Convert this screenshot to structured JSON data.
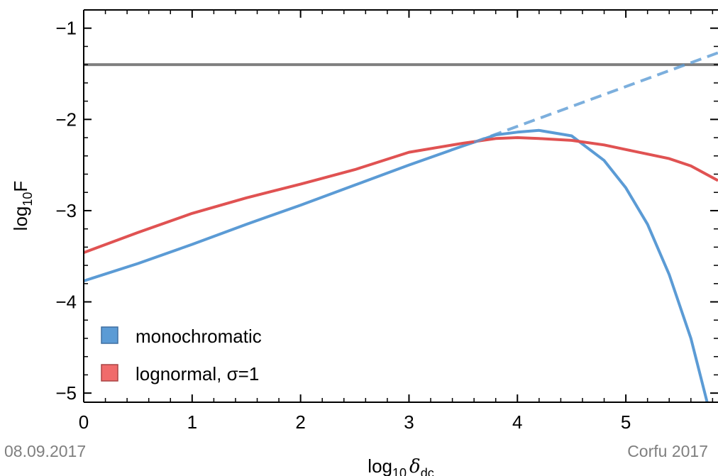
{
  "footer": {
    "date": "08.09.2017",
    "event": "Corfu 2017"
  },
  "chart_data": {
    "type": "line",
    "title": "",
    "xlabel": {
      "base": "log",
      "sub": "10",
      "symbol": "δ",
      "symbol_sub": "dc"
    },
    "ylabel": {
      "base": "log",
      "sub": "10",
      "symbol": "F"
    },
    "xlim": [
      0,
      5.85
    ],
    "ylim": [
      -5.1,
      -0.8
    ],
    "xticks": [
      0,
      1,
      2,
      3,
      4,
      5
    ],
    "yticks": [
      -1,
      -2,
      -3,
      -4,
      -5
    ],
    "xtick_labels": [
      "0",
      "1",
      "2",
      "3",
      "4",
      "5"
    ],
    "ytick_labels": [
      "−1",
      "−2",
      "−3",
      "−4",
      "−5"
    ],
    "grid": false,
    "legend_position": "bottom-left",
    "horizontal_line": {
      "y": -1.4,
      "color": "#7f7f7f"
    },
    "series": [
      {
        "name": "monochromatic",
        "color": "#5b9bd5",
        "style": "solid",
        "x": [
          0,
          0.5,
          1.0,
          1.5,
          2.0,
          2.5,
          3.0,
          3.5,
          3.8,
          4.0,
          4.2,
          4.5,
          4.8,
          5.0,
          5.2,
          5.4,
          5.6,
          5.75
        ],
        "y": [
          -3.77,
          -3.58,
          -3.37,
          -3.15,
          -2.94,
          -2.72,
          -2.5,
          -2.29,
          -2.17,
          -2.14,
          -2.12,
          -2.18,
          -2.45,
          -2.75,
          -3.15,
          -3.7,
          -4.4,
          -5.1
        ]
      },
      {
        "name": "lognormal, σ=1",
        "color": "#e05252",
        "style": "solid",
        "x": [
          0,
          0.5,
          1.0,
          1.5,
          2.0,
          2.5,
          3.0,
          3.5,
          3.8,
          4.0,
          4.2,
          4.5,
          4.8,
          5.0,
          5.2,
          5.4,
          5.6,
          5.85
        ],
        "y": [
          -3.46,
          -3.24,
          -3.03,
          -2.86,
          -2.71,
          -2.55,
          -2.36,
          -2.26,
          -2.21,
          -2.2,
          -2.21,
          -2.23,
          -2.28,
          -2.33,
          -2.38,
          -2.43,
          -2.51,
          -2.67
        ]
      },
      {
        "name": "",
        "color": "#5b9bd5",
        "style": "dashed",
        "x": [
          3.6,
          5.85
        ],
        "y": [
          -2.25,
          -1.27
        ]
      }
    ]
  }
}
